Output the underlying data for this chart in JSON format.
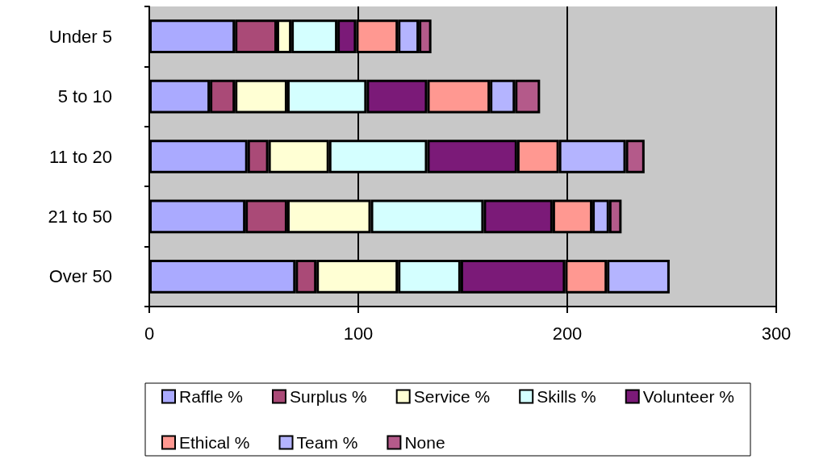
{
  "chart_data": {
    "type": "bar",
    "orientation": "horizontal",
    "stacked": true,
    "categories": [
      "Under 5",
      "5 to 10",
      "11 to 20",
      "21 to 50",
      "Over 50"
    ],
    "series": [
      {
        "name": "Raffle %",
        "color": "#aaaaff",
        "values": [
          41,
          29,
          47,
          46,
          70
        ]
      },
      {
        "name": "Surplus %",
        "color": "#aa4a77",
        "values": [
          20,
          12,
          10,
          20,
          10
        ]
      },
      {
        "name": "Service %",
        "color": "#ffffd4",
        "values": [
          7,
          25,
          29,
          40,
          39
        ]
      },
      {
        "name": "Skills %",
        "color": "#d4ffff",
        "values": [
          22,
          38,
          47,
          54,
          30
        ]
      },
      {
        "name": "Volunteer %",
        "color": "#7b1a78",
        "values": [
          9,
          29,
          43,
          33,
          50
        ]
      },
      {
        "name": "Ethical %",
        "color": "#ff9891",
        "values": [
          20,
          30,
          20,
          19,
          20
        ]
      },
      {
        "name": "Team %",
        "color": "#b4b4ff",
        "values": [
          10,
          12,
          32,
          8,
          30
        ]
      },
      {
        "name": "None",
        "color": "#b45a8a",
        "values": [
          6,
          12,
          9,
          6,
          null
        ]
      }
    ],
    "xlim": [
      0,
      300
    ],
    "xticks": [
      0,
      100,
      200,
      300
    ],
    "grid": "x",
    "legend": "bottom"
  }
}
